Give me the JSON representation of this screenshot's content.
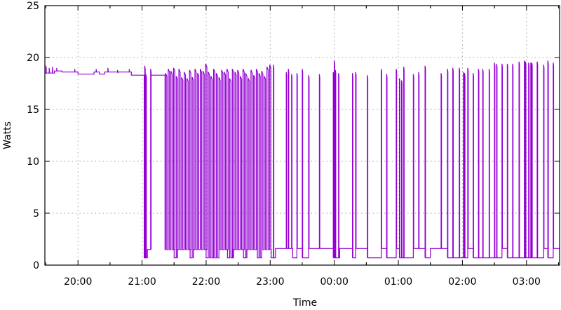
{
  "chart_data": {
    "type": "line",
    "title": "",
    "xlabel": "Time",
    "ylabel": "Watts",
    "xlim": [
      "19:29",
      "03:31"
    ],
    "ylim": [
      0,
      25
    ],
    "x_ticks": [
      "20:00",
      "21:00",
      "22:00",
      "23:00",
      "00:00",
      "01:00",
      "02:00",
      "03:00"
    ],
    "y_ticks": [
      0,
      5,
      10,
      15,
      20,
      25
    ],
    "grid": true,
    "legend": "none",
    "line_color": "#9400d3",
    "series": [
      {
        "levels": [
          [
            "19:29:00",
            18.5
          ],
          [
            "19:38:00",
            18.7
          ],
          [
            "19:45:00",
            18.6
          ],
          [
            "20:00:00",
            18.4
          ],
          [
            "20:15:00",
            18.6
          ],
          [
            "20:20:00",
            18.4
          ],
          [
            "20:25:00",
            18.6
          ],
          [
            "20:50:00",
            18.3
          ],
          [
            "21:02:00",
            0.7
          ],
          [
            "21:05:00",
            1.5
          ],
          [
            "21:08:30",
            18.3
          ],
          [
            "21:21:30",
            1.5
          ],
          [
            "21:30:00",
            0.7
          ],
          [
            "21:33:00",
            1.5
          ],
          [
            "21:45:00",
            0.7
          ],
          [
            "21:48:00",
            1.5
          ],
          [
            "22:00:00",
            0.7
          ],
          [
            "22:12:00",
            1.5
          ],
          [
            "22:20:00",
            0.7
          ],
          [
            "22:25:00",
            1.5
          ],
          [
            "22:35:00",
            0.7
          ],
          [
            "22:38:00",
            1.5
          ],
          [
            "22:48:00",
            0.7
          ],
          [
            "22:52:00",
            1.5
          ],
          [
            "23:01:00",
            0.7
          ],
          [
            "23:05:00",
            1.6
          ],
          [
            "23:21:00",
            0.7
          ],
          [
            "23:25:00",
            1.6
          ],
          [
            "23:30:00",
            0.7
          ],
          [
            "23:36:00",
            1.6
          ],
          [
            "23:59:00",
            0.7
          ],
          [
            "00:05:00",
            1.6
          ],
          [
            "00:17:00",
            0.7
          ],
          [
            "00:20:00",
            1.6
          ],
          [
            "00:31:00",
            0.7
          ],
          [
            "00:44:00",
            1.6
          ],
          [
            "00:49:00",
            0.7
          ],
          [
            "00:58:00",
            1.6
          ],
          [
            "01:01:00",
            0.7
          ],
          [
            "01:14:00",
            1.6
          ],
          [
            "01:25:00",
            0.7
          ],
          [
            "01:30:00",
            1.6
          ],
          [
            "01:46:00",
            0.7
          ],
          [
            "02:05:00",
            1.6
          ],
          [
            "02:10:00",
            0.7
          ],
          [
            "02:37:00",
            1.6
          ],
          [
            "02:42:00",
            0.7
          ],
          [
            "03:16:00",
            1.6
          ],
          [
            "03:20:00",
            0.7
          ],
          [
            "03:25:00",
            1.6
          ]
        ],
        "spikes": [
          [
            "19:30:00",
            19.2,
            20
          ],
          [
            "19:33:00",
            19.0,
            20
          ],
          [
            "19:36:00",
            19.1,
            20
          ],
          [
            "19:40:00",
            19.0,
            20
          ],
          [
            "19:57:00",
            18.9,
            20
          ],
          [
            "20:17:00",
            18.9,
            20
          ],
          [
            "20:28:00",
            19.0,
            20
          ],
          [
            "20:37:00",
            18.8,
            20
          ],
          [
            "20:48:00",
            18.9,
            20
          ],
          [
            "21:02:30",
            19.2,
            30
          ],
          [
            "21:03:30",
            18.4,
            30
          ],
          [
            "21:08:00",
            18.9,
            30
          ],
          [
            "21:22:00",
            18.5,
            70
          ],
          [
            "21:24:30",
            18.9,
            70
          ],
          [
            "21:27:00",
            18.7,
            70
          ],
          [
            "21:29:30",
            19.0,
            70
          ],
          [
            "21:32:00",
            18.2,
            70
          ],
          [
            "21:34:30",
            18.9,
            70
          ],
          [
            "21:37:00",
            18.1,
            70
          ],
          [
            "21:39:30",
            18.6,
            70
          ],
          [
            "21:42:00",
            18.0,
            70
          ],
          [
            "21:44:30",
            18.8,
            70
          ],
          [
            "21:47:00",
            18.1,
            70
          ],
          [
            "21:49:30",
            18.9,
            70
          ],
          [
            "21:52:00",
            18.5,
            70
          ],
          [
            "21:54:30",
            18.9,
            70
          ],
          [
            "21:57:00",
            18.7,
            70
          ],
          [
            "21:59:30",
            19.4,
            70
          ],
          [
            "22:02:00",
            18.6,
            70
          ],
          [
            "22:04:30",
            18.2,
            70
          ],
          [
            "22:07:00",
            18.9,
            70
          ],
          [
            "22:09:30",
            18.5,
            70
          ],
          [
            "22:12:00",
            18.1,
            70
          ],
          [
            "22:14:30",
            18.8,
            70
          ],
          [
            "22:17:00",
            18.6,
            70
          ],
          [
            "22:19:30",
            18.9,
            70
          ],
          [
            "22:22:00",
            18.0,
            70
          ],
          [
            "22:24:30",
            18.9,
            70
          ],
          [
            "22:27:00",
            18.6,
            70
          ],
          [
            "22:29:30",
            18.8,
            70
          ],
          [
            "22:32:00",
            18.2,
            70
          ],
          [
            "22:34:30",
            18.9,
            70
          ],
          [
            "22:37:00",
            18.5,
            70
          ],
          [
            "22:39:30",
            18.0,
            70
          ],
          [
            "22:42:00",
            18.8,
            70
          ],
          [
            "22:44:30",
            18.3,
            70
          ],
          [
            "22:47:00",
            18.9,
            70
          ],
          [
            "22:49:30",
            18.5,
            70
          ],
          [
            "22:52:00",
            18.7,
            70
          ],
          [
            "22:54:30",
            18.2,
            70
          ],
          [
            "22:57:00",
            19.1,
            70
          ],
          [
            "22:59:30",
            19.3,
            70
          ],
          [
            "23:03:00",
            19.3,
            25
          ],
          [
            "23:15:00",
            18.6,
            25
          ],
          [
            "23:17:00",
            18.9,
            25
          ],
          [
            "23:20:00",
            18.4,
            25
          ],
          [
            "23:25:00",
            18.5,
            25
          ],
          [
            "23:30:00",
            18.9,
            25
          ],
          [
            "23:36:00",
            18.3,
            25
          ],
          [
            "23:46:00",
            18.4,
            25
          ],
          [
            "23:59:00",
            18.6,
            25
          ],
          [
            "00:00:00",
            19.7,
            25
          ],
          [
            "00:01:00",
            18.8,
            25
          ],
          [
            "00:04:00",
            18.5,
            25
          ],
          [
            "00:17:00",
            18.5,
            25
          ],
          [
            "00:20:00",
            18.6,
            25
          ],
          [
            "00:31:00",
            18.3,
            25
          ],
          [
            "00:44:00",
            18.9,
            25
          ],
          [
            "00:49:00",
            18.4,
            25
          ],
          [
            "00:58:00",
            18.9,
            25
          ],
          [
            "01:01:00",
            18.0,
            25
          ],
          [
            "01:03:00",
            17.8,
            25
          ],
          [
            "01:05:00",
            19.1,
            25
          ],
          [
            "01:14:00",
            18.4,
            25
          ],
          [
            "01:19:00",
            18.6,
            25
          ],
          [
            "01:25:00",
            19.2,
            25
          ],
          [
            "01:40:00",
            18.5,
            25
          ],
          [
            "01:46:00",
            18.9,
            25
          ],
          [
            "01:51:00",
            19.0,
            25
          ],
          [
            "01:57:00",
            19.0,
            25
          ],
          [
            "02:01:00",
            18.6,
            25
          ],
          [
            "02:02:00",
            18.5,
            25
          ],
          [
            "02:05:00",
            19.0,
            25
          ],
          [
            "02:10:00",
            18.5,
            25
          ],
          [
            "02:15:00",
            18.9,
            25
          ],
          [
            "02:19:00",
            18.9,
            25
          ],
          [
            "02:25:00",
            18.9,
            25
          ],
          [
            "02:30:00",
            19.5,
            25
          ],
          [
            "02:32:00",
            19.4,
            25
          ],
          [
            "02:37:00",
            19.4,
            25
          ],
          [
            "02:42:00",
            19.4,
            25
          ],
          [
            "02:47:00",
            19.4,
            25
          ],
          [
            "02:53:00",
            19.6,
            25
          ],
          [
            "02:58:00",
            19.7,
            25
          ],
          [
            "02:59:00",
            19.6,
            25
          ],
          [
            "03:02:00",
            19.5,
            25
          ],
          [
            "03:04:00",
            19.5,
            25
          ],
          [
            "03:05:00",
            19.5,
            25
          ],
          [
            "03:10:00",
            19.6,
            25
          ],
          [
            "03:16:00",
            19.3,
            25
          ],
          [
            "03:20:00",
            19.7,
            25
          ],
          [
            "03:25:00",
            19.5,
            25
          ]
        ]
      }
    ]
  }
}
